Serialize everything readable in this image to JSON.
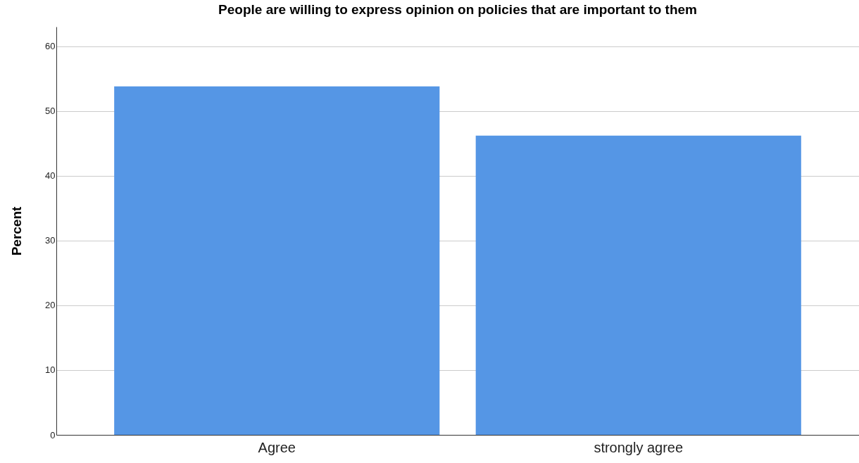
{
  "chart_data": {
    "type": "bar",
    "title": "People are willing to express opinion on policies that are important to them",
    "ylabel": "Percent",
    "categories": [
      "Agree",
      "strongly agree"
    ],
    "values": [
      53.8,
      46.2
    ],
    "color": "#5596e5",
    "ylim": [
      0,
      63
    ],
    "yticks": [
      0,
      10,
      20,
      30,
      40,
      50,
      60
    ],
    "grid": "y"
  }
}
